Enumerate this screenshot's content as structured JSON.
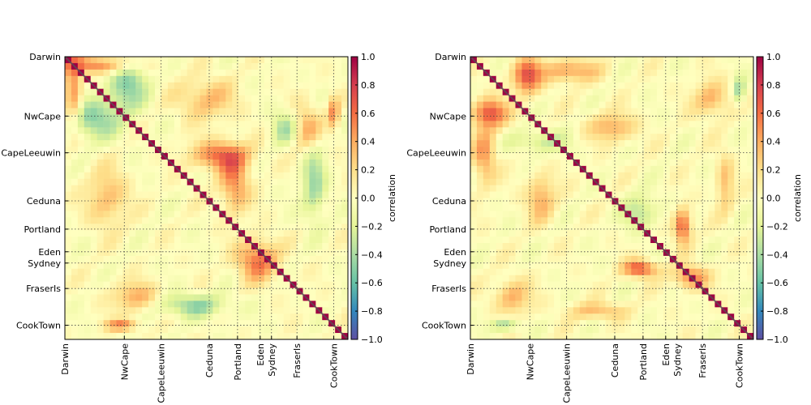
{
  "chart_data": [
    {
      "type": "heatmap",
      "title": "",
      "ticks": [
        {
          "label": "Darwin",
          "pos": 0.0
        },
        {
          "label": "NwCape",
          "pos": 0.21
        },
        {
          "label": "CapeLeeuwin",
          "pos": 0.34
        },
        {
          "label": "Ceduna",
          "pos": 0.51
        },
        {
          "label": "Portland",
          "pos": 0.61
        },
        {
          "label": "Eden",
          "pos": 0.69
        },
        {
          "label": "Sydney",
          "pos": 0.73
        },
        {
          "label": "FraserIs",
          "pos": 0.82
        },
        {
          "label": "CookTown",
          "pos": 0.95
        }
      ],
      "blobs": [
        {
          "x": 0.03,
          "y": 0.12,
          "sx": 0.03,
          "sy": 0.13,
          "v": 0.55
        },
        {
          "x": 0.12,
          "y": 0.03,
          "sx": 0.13,
          "sy": 0.03,
          "v": 0.55
        },
        {
          "x": 0.22,
          "y": 0.1,
          "sx": 0.07,
          "sy": 0.09,
          "v": -0.5
        },
        {
          "x": 0.1,
          "y": 0.22,
          "sx": 0.09,
          "sy": 0.07,
          "v": -0.5
        },
        {
          "x": 0.55,
          "y": 0.35,
          "sx": 0.1,
          "sy": 0.05,
          "v": 0.6
        },
        {
          "x": 0.6,
          "y": 0.45,
          "sx": 0.05,
          "sy": 0.1,
          "v": 0.5
        },
        {
          "x": 0.68,
          "y": 0.72,
          "sx": 0.07,
          "sy": 0.07,
          "v": 0.6
        },
        {
          "x": 0.45,
          "y": 0.88,
          "sx": 0.12,
          "sy": 0.04,
          "v": -0.45
        },
        {
          "x": 0.88,
          "y": 0.45,
          "sx": 0.04,
          "sy": 0.12,
          "v": -0.45
        },
        {
          "x": 0.25,
          "y": 0.85,
          "sx": 0.08,
          "sy": 0.05,
          "v": 0.4
        },
        {
          "x": 0.85,
          "y": 0.25,
          "sx": 0.05,
          "sy": 0.08,
          "v": 0.4
        },
        {
          "x": 0.5,
          "y": 0.15,
          "sx": 0.1,
          "sy": 0.07,
          "v": 0.35
        },
        {
          "x": 0.15,
          "y": 0.5,
          "sx": 0.07,
          "sy": 0.1,
          "v": 0.35
        },
        {
          "x": 0.95,
          "y": 0.2,
          "sx": 0.02,
          "sy": 0.06,
          "v": 0.5
        },
        {
          "x": 0.2,
          "y": 0.95,
          "sx": 0.06,
          "sy": 0.02,
          "v": 0.5
        },
        {
          "x": 0.78,
          "y": 0.25,
          "sx": 0.05,
          "sy": 0.06,
          "v": -0.4
        }
      ],
      "colorbar": {
        "label": "correlation",
        "ticks": [
          "1.0",
          "0.8",
          "0.6",
          "0.4",
          "0.2",
          "0.0",
          "−0.2",
          "−0.4",
          "−0.6",
          "−0.8",
          "−1.0"
        ],
        "range": [
          -1.0,
          1.0
        ]
      },
      "colormap": [
        "#9e0142",
        "#d53e4f",
        "#f46d43",
        "#fdae61",
        "#fee08b",
        "#ffffbf",
        "#e6f598",
        "#abdda4",
        "#66c2a5",
        "#3288bd",
        "#5e4fa2"
      ]
    },
    {
      "type": "heatmap",
      "title": "",
      "ticks": [
        {
          "label": "Darwin",
          "pos": 0.0
        },
        {
          "label": "NwCape",
          "pos": 0.21
        },
        {
          "label": "CapeLeeuwin",
          "pos": 0.34
        },
        {
          "label": "Ceduna",
          "pos": 0.51
        },
        {
          "label": "Portland",
          "pos": 0.61
        },
        {
          "label": "Eden",
          "pos": 0.69
        },
        {
          "label": "Sydney",
          "pos": 0.73
        },
        {
          "label": "FraserIs",
          "pos": 0.82
        },
        {
          "label": "CookTown",
          "pos": 0.95
        }
      ],
      "blobs": [
        {
          "x": 0.2,
          "y": 0.07,
          "sx": 0.05,
          "sy": 0.06,
          "v": 0.7
        },
        {
          "x": 0.07,
          "y": 0.2,
          "sx": 0.06,
          "sy": 0.05,
          "v": 0.7
        },
        {
          "x": 0.35,
          "y": 0.05,
          "sx": 0.1,
          "sy": 0.04,
          "v": 0.45
        },
        {
          "x": 0.05,
          "y": 0.35,
          "sx": 0.04,
          "sy": 0.1,
          "v": 0.45
        },
        {
          "x": 0.5,
          "y": 0.25,
          "sx": 0.08,
          "sy": 0.05,
          "v": 0.4
        },
        {
          "x": 0.25,
          "y": 0.5,
          "sx": 0.05,
          "sy": 0.08,
          "v": 0.4
        },
        {
          "x": 0.6,
          "y": 0.55,
          "sx": 0.06,
          "sy": 0.06,
          "v": -0.35
        },
        {
          "x": 0.75,
          "y": 0.6,
          "sx": 0.03,
          "sy": 0.06,
          "v": 0.7
        },
        {
          "x": 0.6,
          "y": 0.75,
          "sx": 0.06,
          "sy": 0.03,
          "v": 0.7
        },
        {
          "x": 0.78,
          "y": 0.78,
          "sx": 0.06,
          "sy": 0.04,
          "v": 0.55
        },
        {
          "x": 0.85,
          "y": 0.15,
          "sx": 0.06,
          "sy": 0.06,
          "v": 0.4
        },
        {
          "x": 0.15,
          "y": 0.85,
          "sx": 0.06,
          "sy": 0.06,
          "v": 0.4
        },
        {
          "x": 0.25,
          "y": 0.3,
          "sx": 0.1,
          "sy": 0.04,
          "v": -0.3
        },
        {
          "x": 0.95,
          "y": 0.12,
          "sx": 0.02,
          "sy": 0.05,
          "v": -0.45
        },
        {
          "x": 0.12,
          "y": 0.95,
          "sx": 0.05,
          "sy": 0.02,
          "v": -0.45
        },
        {
          "x": 0.45,
          "y": 0.9,
          "sx": 0.1,
          "sy": 0.03,
          "v": 0.35
        },
        {
          "x": 0.9,
          "y": 0.45,
          "sx": 0.03,
          "sy": 0.1,
          "v": 0.35
        }
      ],
      "colorbar": {
        "label": "correlation",
        "ticks": [
          "1.0",
          "0.8",
          "0.6",
          "0.4",
          "0.2",
          "0.0",
          "−0.2",
          "−0.4",
          "−0.6",
          "−0.8",
          "−1.0"
        ],
        "range": [
          -1.0,
          1.0
        ]
      },
      "colormap": [
        "#9e0142",
        "#d53e4f",
        "#f46d43",
        "#fdae61",
        "#fee08b",
        "#ffffbf",
        "#e6f598",
        "#abdda4",
        "#66c2a5",
        "#3288bd",
        "#5e4fa2"
      ]
    }
  ]
}
